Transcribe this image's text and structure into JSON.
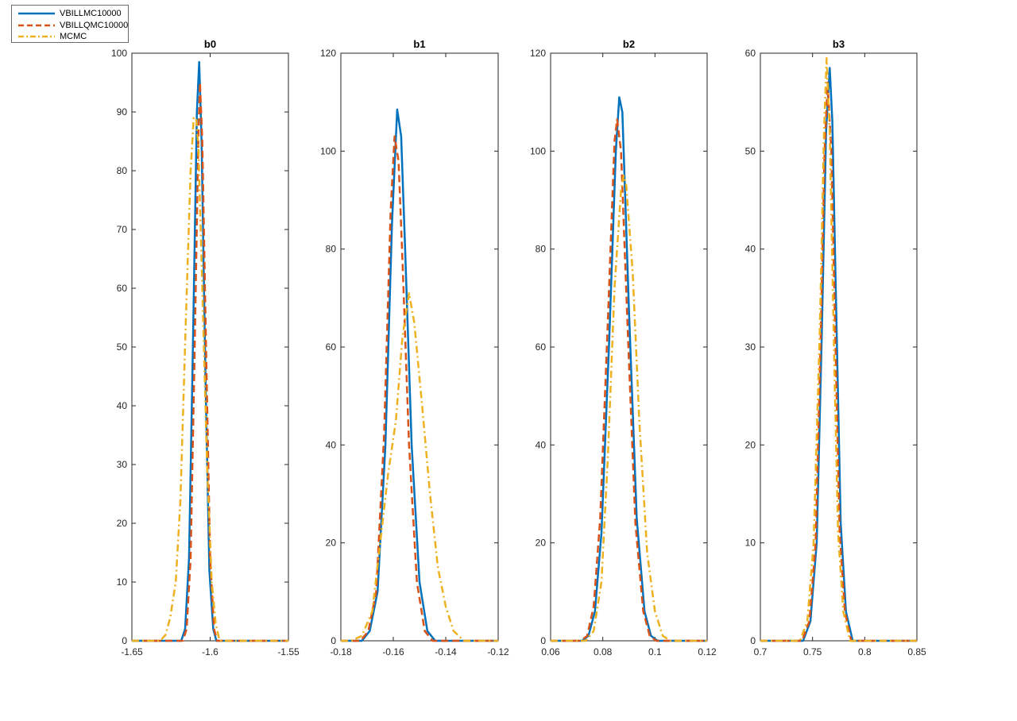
{
  "legend": {
    "entries": [
      {
        "label": "VBILLMC10000",
        "color": "#0072BD",
        "style": "solid"
      },
      {
        "label": "VBILLQMC10000",
        "color": "#D95319",
        "style": "dashed"
      },
      {
        "label": "MCMC",
        "color": "#EDB120",
        "style": "dashdot"
      }
    ]
  },
  "chart_data": [
    {
      "type": "line",
      "title": "b0",
      "xlim": [
        -1.65,
        -1.55
      ],
      "ylim": [
        0,
        100
      ],
      "xticks": [
        -1.65,
        -1.6,
        -1.55
      ],
      "xtick_labels": [
        "-1.65",
        "-1.6",
        "-1.55"
      ],
      "yticks": [
        0,
        10,
        20,
        30,
        40,
        50,
        60,
        70,
        80,
        90,
        100
      ],
      "ytick_labels": [
        "0",
        "10",
        "20",
        "30",
        "40",
        "50",
        "60",
        "70",
        "80",
        "90",
        "100"
      ],
      "series": [
        {
          "name": "VBILLMC10000",
          "color": "#0072BD",
          "style": "solid",
          "x": [
            -1.65,
            -1.6185,
            -1.616,
            -1.6135,
            -1.611,
            -1.6085,
            -1.607,
            -1.6055,
            -1.603,
            -1.6005,
            -1.598,
            -1.596,
            -1.55
          ],
          "y": [
            0,
            0,
            2,
            14,
            50,
            90,
            98.5,
            85,
            45,
            12,
            2,
            0,
            0
          ]
        },
        {
          "name": "VBILLQMC10000",
          "color": "#D95319",
          "style": "dashed",
          "x": [
            -1.65,
            -1.6175,
            -1.615,
            -1.6125,
            -1.61,
            -1.6075,
            -1.6065,
            -1.605,
            -1.6025,
            -1.6,
            -1.5975,
            -1.5955,
            -1.55
          ],
          "y": [
            0,
            0,
            2,
            14,
            48,
            86,
            95,
            85,
            48,
            14,
            2,
            0,
            0
          ]
        },
        {
          "name": "MCMC",
          "color": "#EDB120",
          "style": "dashdot",
          "x": [
            -1.65,
            -1.632,
            -1.6285,
            -1.6255,
            -1.622,
            -1.619,
            -1.6155,
            -1.6125,
            -1.6105,
            -1.609,
            -1.6075,
            -1.605,
            -1.602,
            -1.599,
            -1.5965,
            -1.594,
            -1.55
          ],
          "y": [
            0,
            0,
            1,
            4,
            10,
            24,
            55,
            80,
            89,
            89,
            84,
            60,
            30,
            10,
            3,
            0,
            0
          ]
        }
      ]
    },
    {
      "type": "line",
      "title": "b1",
      "xlim": [
        -0.18,
        -0.12
      ],
      "ylim": [
        0,
        120
      ],
      "xticks": [
        -0.18,
        -0.16,
        -0.14,
        -0.12
      ],
      "xtick_labels": [
        "-0.18",
        "-0.16",
        "-0.14",
        "-0.12"
      ],
      "yticks": [
        0,
        20,
        40,
        60,
        80,
        100,
        120
      ],
      "ytick_labels": [
        "0",
        "20",
        "40",
        "60",
        "80",
        "100",
        "120"
      ],
      "series": [
        {
          "name": "VBILLMC10000",
          "color": "#0072BD",
          "style": "solid",
          "x": [
            -0.18,
            -0.172,
            -0.169,
            -0.166,
            -0.163,
            -0.1605,
            -0.1585,
            -0.157,
            -0.1555,
            -0.153,
            -0.15,
            -0.147,
            -0.144,
            -0.12
          ],
          "y": [
            0,
            0,
            2,
            10,
            40,
            85,
            108.5,
            103,
            80,
            40,
            12,
            2,
            0,
            0
          ]
        },
        {
          "name": "VBILLQMC10000",
          "color": "#D95319",
          "style": "dashed",
          "x": [
            -0.18,
            -0.1725,
            -0.1695,
            -0.1665,
            -0.1635,
            -0.161,
            -0.1595,
            -0.158,
            -0.1565,
            -0.154,
            -0.151,
            -0.148,
            -0.145,
            -0.12
          ],
          "y": [
            0,
            0,
            2,
            10,
            42,
            88,
            103,
            98,
            78,
            40,
            12,
            2,
            0,
            0
          ]
        },
        {
          "name": "MCMC",
          "color": "#EDB120",
          "style": "dashdot",
          "x": [
            -0.18,
            -0.176,
            -0.172,
            -0.168,
            -0.165,
            -0.162,
            -0.159,
            -0.1565,
            -0.154,
            -0.152,
            -0.149,
            -0.146,
            -0.143,
            -0.14,
            -0.137,
            -0.133,
            -0.12
          ],
          "y": [
            0,
            0,
            1,
            6,
            20,
            34,
            45,
            62,
            71,
            65,
            48,
            30,
            15,
            7,
            2,
            0,
            0
          ]
        }
      ]
    },
    {
      "type": "line",
      "title": "b2",
      "xlim": [
        0.06,
        0.12
      ],
      "ylim": [
        0,
        120
      ],
      "xticks": [
        0.06,
        0.08,
        0.1,
        0.12
      ],
      "xtick_labels": [
        "0.06",
        "0.08",
        "0.1",
        "0.12"
      ],
      "yticks": [
        0,
        20,
        40,
        60,
        80,
        100,
        120
      ],
      "ytick_labels": [
        "0",
        "20",
        "40",
        "60",
        "80",
        "100",
        "120"
      ],
      "series": [
        {
          "name": "VBILLMC10000",
          "color": "#0072BD",
          "style": "solid",
          "x": [
            0.06,
            0.072,
            0.0745,
            0.077,
            0.0795,
            0.0825,
            0.085,
            0.0863,
            0.0875,
            0.09,
            0.093,
            0.096,
            0.0985,
            0.101,
            0.12
          ],
          "y": [
            0,
            0,
            1,
            6,
            22,
            62,
            100,
            111,
            108,
            68,
            25,
            6,
            1,
            0,
            0
          ]
        },
        {
          "name": "VBILLQMC10000",
          "color": "#D95319",
          "style": "dashed",
          "x": [
            0.06,
            0.0715,
            0.074,
            0.0765,
            0.079,
            0.082,
            0.0845,
            0.0855,
            0.087,
            0.0895,
            0.0925,
            0.0955,
            0.098,
            0.1005,
            0.12
          ],
          "y": [
            0,
            0,
            1,
            7,
            25,
            66,
            102,
            106.5,
            100,
            64,
            24,
            6,
            1,
            0,
            0
          ]
        },
        {
          "name": "MCMC",
          "color": "#EDB120",
          "style": "dashdot",
          "x": [
            0.06,
            0.0735,
            0.0765,
            0.0795,
            0.082,
            0.0845,
            0.087,
            0.088,
            0.089,
            0.0915,
            0.094,
            0.097,
            0.1,
            0.103,
            0.106,
            0.12
          ],
          "y": [
            0,
            0,
            2,
            12,
            38,
            72,
            92,
            95,
            93,
            75,
            45,
            18,
            6,
            1,
            0,
            0
          ]
        }
      ]
    },
    {
      "type": "line",
      "title": "b3",
      "xlim": [
        0.7,
        0.85
      ],
      "ylim": [
        0,
        60
      ],
      "xticks": [
        0.7,
        0.75,
        0.8,
        0.85
      ],
      "xtick_labels": [
        "0.7",
        "0.75",
        "0.8",
        "0.85"
      ],
      "yticks": [
        0,
        10,
        20,
        30,
        40,
        50,
        60
      ],
      "ytick_labels": [
        "0",
        "10",
        "20",
        "30",
        "40",
        "50",
        "60"
      ],
      "series": [
        {
          "name": "VBILLMC10000",
          "color": "#0072BD",
          "style": "solid",
          "x": [
            0.7,
            0.741,
            0.748,
            0.754,
            0.759,
            0.763,
            0.7665,
            0.769,
            0.773,
            0.777,
            0.782,
            0.7885,
            0.85
          ],
          "y": [
            0,
            0,
            2,
            10,
            32,
            52,
            58.5,
            53,
            32,
            12,
            3,
            0,
            0
          ]
        },
        {
          "name": "VBILLQMC10000",
          "color": "#D95319",
          "style": "dashed",
          "x": [
            0.7,
            0.74,
            0.747,
            0.753,
            0.758,
            0.7615,
            0.7645,
            0.768,
            0.772,
            0.776,
            0.781,
            0.787,
            0.85
          ],
          "y": [
            0,
            0,
            2,
            10,
            32,
            50,
            57,
            50,
            30,
            11,
            3,
            0,
            0
          ]
        },
        {
          "name": "MCMC",
          "color": "#EDB120",
          "style": "dashdot",
          "x": [
            0.7,
            0.738,
            0.745,
            0.751,
            0.757,
            0.761,
            0.7635,
            0.7665,
            0.7705,
            0.7745,
            0.7795,
            0.786,
            0.85
          ],
          "y": [
            0,
            0,
            2,
            10,
            32,
            52,
            59.5,
            52,
            30,
            11,
            3,
            0,
            0
          ]
        }
      ]
    }
  ]
}
